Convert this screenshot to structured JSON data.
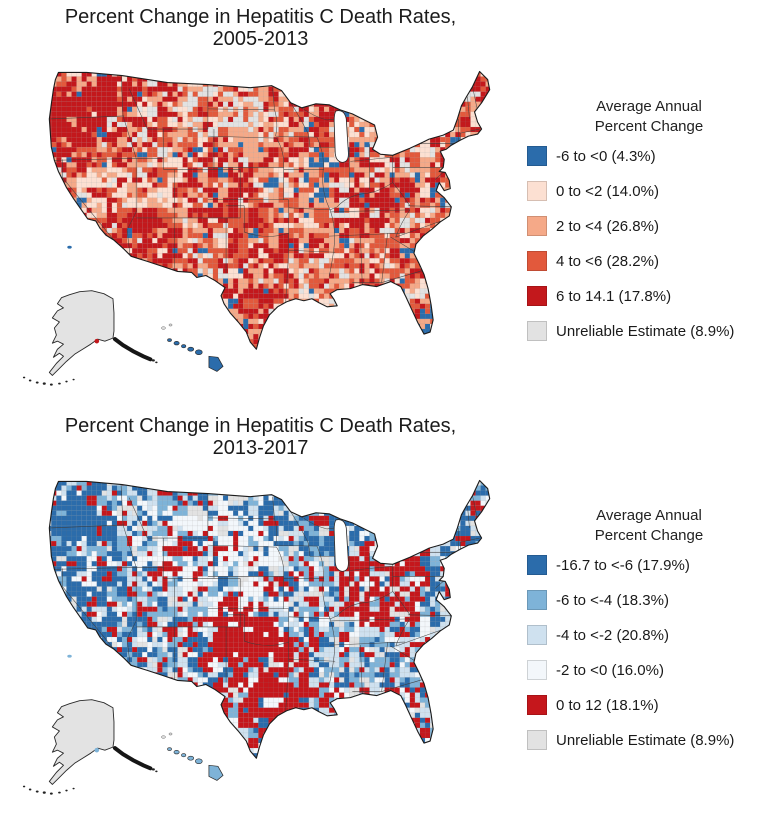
{
  "page": {
    "background": "#ffffff"
  },
  "figures": [
    {
      "title_line1": "Percent Change in Hepatitis C Death Rates,",
      "title_line2": "2005-2013",
      "legend": {
        "title_line1": "Average Annual",
        "title_line2": "Percent Change",
        "items": [
          {
            "label": "-6 to <0 (4.3%)",
            "color": "#2b6cab"
          },
          {
            "label": "0 to <2 (14.0%)",
            "color": "#fce0d2"
          },
          {
            "label": "2 to <4 (26.8%)",
            "color": "#f5a988"
          },
          {
            "label": "4 to <6 (28.2%)",
            "color": "#e2593c"
          },
          {
            "label": "6 to 14.1 (17.8%)",
            "color": "#c3181c"
          },
          {
            "label": "Unreliable Estimate (8.9%)",
            "color": "#e2e2e2"
          }
        ]
      },
      "map": {
        "alaska_color": "#e3e3e3",
        "alaska_dot": "#c3181c",
        "hawaii": "#2b6cab",
        "offshore": "#2b6cab"
      }
    },
    {
      "title_line1": "Percent Change in Hepatitis C Death Rates,",
      "title_line2": "2013-2017",
      "legend": {
        "title_line1": "Average Annual",
        "title_line2": "Percent Change",
        "items": [
          {
            "label": "-16.7 to <-6 (17.9%)",
            "color": "#2b6cab"
          },
          {
            "label": "-6 to <-4 (18.3%)",
            "color": "#7eb3d8"
          },
          {
            "label": "-4 to <-2 (20.8%)",
            "color": "#cfe1ef"
          },
          {
            "label": "-2 to <0 (16.0%)",
            "color": "#f3f7fb"
          },
          {
            "label": "0 to 12 (18.1%)",
            "color": "#c5171c"
          },
          {
            "label": "Unreliable Estimate (8.9%)",
            "color": "#e2e2e2"
          }
        ]
      },
      "map": {
        "alaska_color": "#e3e3e3",
        "alaska_dot": "#7eb3d8",
        "hawaii": "#7eb3d8",
        "offshore": "#7eb3d8"
      }
    }
  ],
  "chart_data": [
    {
      "type": "choropleth_map",
      "title": "Percent Change in Hepatitis C Death Rates, 2005-2013",
      "geography": "United States counties, with Alaska and Hawaii insets",
      "legend_title": "Average Annual Percent Change",
      "legend_position": "right",
      "categories": [
        "-6 to <0",
        "0 to <2",
        "2 to <4",
        "4 to <6",
        "6 to 14.1",
        "Unreliable Estimate"
      ],
      "percent_of_counties": [
        4.3,
        14.0,
        26.8,
        28.2,
        17.8,
        8.9
      ],
      "colors": [
        "#2b6cab",
        "#fce0d2",
        "#f5a988",
        "#e2593c",
        "#c3181c",
        "#e2e2e2"
      ]
    },
    {
      "type": "choropleth_map",
      "title": "Percent Change in Hepatitis C Death Rates, 2013-2017",
      "geography": "United States counties, with Alaska and Hawaii insets",
      "legend_title": "Average Annual Percent Change",
      "legend_position": "right",
      "categories": [
        "-16.7 to <-6",
        "-6 to <-4",
        "-4 to <-2",
        "-2 to <0",
        "0 to 12",
        "Unreliable Estimate"
      ],
      "percent_of_counties": [
        17.9,
        18.3,
        20.8,
        16.0,
        18.1,
        8.9
      ],
      "colors": [
        "#2b6cab",
        "#7eb3d8",
        "#cfe1ef",
        "#f3f7fb",
        "#c5171c",
        "#e2e2e2"
      ]
    }
  ]
}
